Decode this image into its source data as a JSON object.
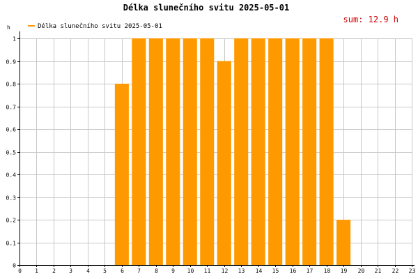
{
  "chart_data": {
    "type": "bar",
    "title": "Délka slunečního svitu 2025-05-01",
    "legend": "Délka slunečního svitu 2025-05-01",
    "legend_position": "top-left",
    "ylabel": "h",
    "summary": "sum: 12.9 h",
    "x_ticks": [
      "0",
      "1",
      "2",
      "3",
      "4",
      "5",
      "6",
      "7",
      "8",
      "9",
      "10",
      "11",
      "12",
      "13",
      "14",
      "15",
      "16",
      "17",
      "18",
      "19",
      "20",
      "21",
      "22",
      "23"
    ],
    "y_ticks": [
      "0",
      "0.1",
      "0.2",
      "0.3",
      "0.4",
      "0.5",
      "0.6",
      "0.7",
      "0.8",
      "0.9",
      "1"
    ],
    "ylim": [
      0,
      1
    ],
    "xlim": [
      0,
      23
    ],
    "grid": true,
    "bar_color": "#ff9900",
    "summary_color": "#cc0000",
    "bars": [
      {
        "hour": 6,
        "value": 0.8
      },
      {
        "hour": 7,
        "value": 1
      },
      {
        "hour": 8,
        "value": 1
      },
      {
        "hour": 9,
        "value": 1
      },
      {
        "hour": 10,
        "value": 1
      },
      {
        "hour": 11,
        "value": 1
      },
      {
        "hour": 12,
        "value": 0.9
      },
      {
        "hour": 13,
        "value": 1
      },
      {
        "hour": 14,
        "value": 1
      },
      {
        "hour": 15,
        "value": 1
      },
      {
        "hour": 16,
        "value": 1
      },
      {
        "hour": 17,
        "value": 1
      },
      {
        "hour": 18,
        "value": 1
      },
      {
        "hour": 19,
        "value": 0.2
      }
    ]
  }
}
